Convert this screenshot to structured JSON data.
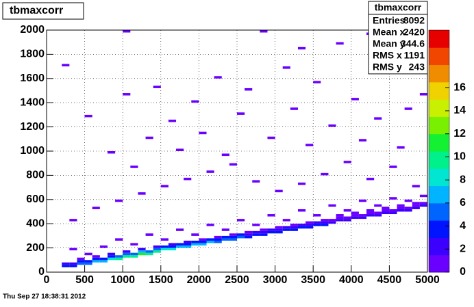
{
  "chart_data": {
    "type": "hist2d",
    "title": "tbmaxcorr",
    "timestamp": "Thu Sep 27 18:38:31 2012",
    "stats_title": "tbmaxcorr",
    "stats": [
      {
        "label": "Entries",
        "value": 8092
      },
      {
        "label": "Mean x",
        "value": 2420
      },
      {
        "label": "Mean y",
        "value": 344.6
      },
      {
        "label": "RMS x",
        "value": 1191
      },
      {
        "label": "RMS y",
        "value": 243
      }
    ],
    "xlim": [
      0,
      5000
    ],
    "ylim": [
      0,
      2000
    ],
    "zlim": [
      0,
      21
    ],
    "xticks": [
      0,
      500,
      1000,
      1500,
      2000,
      2500,
      3000,
      3500,
      4000,
      4500,
      5000
    ],
    "yticks": [
      0,
      200,
      400,
      600,
      800,
      1000,
      1200,
      1400,
      1600,
      1800,
      2000
    ],
    "zticks": [
      0,
      2,
      4,
      6,
      8,
      10,
      12,
      14,
      16
    ],
    "grid": true,
    "bin_size": [
      100,
      20
    ],
    "palette": [
      "#6a00ff",
      "#3c00ff",
      "#0014ff",
      "#0064ff",
      "#00b4ff",
      "#00e6d2",
      "#00f08c",
      "#14f032",
      "#78f000",
      "#c8f000",
      "#f0d200",
      "#f08c00",
      "#f04600",
      "#e60000"
    ],
    "cells": [
      [
        200,
        40,
        3
      ],
      [
        300,
        40,
        4
      ],
      [
        400,
        60,
        5
      ],
      [
        500,
        60,
        5
      ],
      [
        600,
        80,
        6
      ],
      [
        700,
        80,
        7
      ],
      [
        800,
        100,
        8
      ],
      [
        900,
        100,
        9
      ],
      [
        1000,
        120,
        10
      ],
      [
        1100,
        120,
        10
      ],
      [
        1200,
        140,
        11
      ],
      [
        1300,
        140,
        10
      ],
      [
        1400,
        160,
        9
      ],
      [
        1500,
        180,
        8
      ],
      [
        1600,
        180,
        8
      ],
      [
        1700,
        200,
        7
      ],
      [
        1800,
        200,
        7
      ],
      [
        1900,
        220,
        6
      ],
      [
        2000,
        220,
        6
      ],
      [
        2100,
        240,
        6
      ],
      [
        2200,
        240,
        5
      ],
      [
        2300,
        260,
        5
      ],
      [
        2400,
        260,
        5
      ],
      [
        2500,
        280,
        5
      ],
      [
        2600,
        280,
        4
      ],
      [
        2700,
        300,
        4
      ],
      [
        2800,
        300,
        4
      ],
      [
        2900,
        320,
        4
      ],
      [
        3000,
        320,
        3
      ],
      [
        3100,
        340,
        3
      ],
      [
        3200,
        340,
        3
      ],
      [
        3300,
        360,
        3
      ],
      [
        3400,
        360,
        3
      ],
      [
        3500,
        380,
        3
      ],
      [
        3600,
        380,
        3
      ],
      [
        3700,
        400,
        2
      ],
      [
        3800,
        420,
        2
      ],
      [
        3900,
        420,
        2
      ],
      [
        4000,
        440,
        2
      ],
      [
        4100,
        440,
        2
      ],
      [
        4200,
        460,
        2
      ],
      [
        4300,
        460,
        2
      ],
      [
        4400,
        480,
        2
      ],
      [
        4500,
        480,
        2
      ],
      [
        4600,
        500,
        2
      ],
      [
        4700,
        500,
        2
      ],
      [
        4800,
        520,
        2
      ],
      [
        4900,
        540,
        2
      ],
      [
        200,
        60,
        2
      ],
      [
        300,
        60,
        2
      ],
      [
        400,
        80,
        3
      ],
      [
        500,
        80,
        3
      ],
      [
        600,
        100,
        3
      ],
      [
        700,
        100,
        4
      ],
      [
        800,
        120,
        4
      ],
      [
        900,
        120,
        5
      ],
      [
        1000,
        140,
        5
      ],
      [
        1100,
        140,
        5
      ],
      [
        1200,
        160,
        6
      ],
      [
        1300,
        160,
        5
      ],
      [
        1400,
        180,
        5
      ],
      [
        1500,
        200,
        4
      ],
      [
        1600,
        200,
        4
      ],
      [
        1700,
        220,
        4
      ],
      [
        1800,
        220,
        4
      ],
      [
        1900,
        240,
        3
      ],
      [
        2000,
        240,
        3
      ],
      [
        2100,
        260,
        3
      ],
      [
        2200,
        260,
        3
      ],
      [
        2300,
        280,
        3
      ],
      [
        2400,
        280,
        3
      ],
      [
        2500,
        300,
        3
      ],
      [
        2600,
        300,
        2
      ],
      [
        2700,
        320,
        2
      ],
      [
        2800,
        320,
        2
      ],
      [
        2900,
        340,
        2
      ],
      [
        3000,
        340,
        2
      ],
      [
        3100,
        360,
        2
      ],
      [
        3200,
        360,
        2
      ],
      [
        3300,
        380,
        2
      ],
      [
        3400,
        380,
        2
      ],
      [
        3500,
        400,
        2
      ],
      [
        3600,
        400,
        2
      ],
      [
        3700,
        420,
        1
      ],
      [
        3800,
        440,
        1
      ],
      [
        3900,
        440,
        1
      ],
      [
        4000,
        460,
        1
      ],
      [
        4100,
        460,
        1
      ],
      [
        4200,
        480,
        1
      ],
      [
        4300,
        480,
        1
      ],
      [
        4400,
        500,
        1
      ],
      [
        4500,
        500,
        1
      ],
      [
        4600,
        520,
        1
      ],
      [
        4700,
        520,
        1
      ],
      [
        4800,
        540,
        1
      ],
      [
        4900,
        560,
        1
      ],
      [
        400,
        100,
        1
      ],
      [
        600,
        120,
        1
      ],
      [
        800,
        140,
        2
      ],
      [
        1000,
        160,
        2
      ],
      [
        1200,
        180,
        2
      ],
      [
        1400,
        200,
        2
      ],
      [
        1600,
        220,
        2
      ],
      [
        1800,
        240,
        2
      ],
      [
        2000,
        260,
        1
      ],
      [
        2200,
        280,
        1
      ],
      [
        2400,
        300,
        1
      ],
      [
        2600,
        320,
        1
      ],
      [
        2800,
        340,
        1
      ],
      [
        3000,
        360,
        1
      ],
      [
        3200,
        380,
        1
      ],
      [
        3400,
        400,
        1
      ],
      [
        3600,
        420,
        1
      ],
      [
        3800,
        460,
        1
      ],
      [
        4000,
        480,
        1
      ],
      [
        4200,
        500,
        1
      ],
      [
        4400,
        520,
        1
      ],
      [
        4600,
        540,
        1
      ],
      [
        4800,
        560,
        1
      ],
      [
        300,
        180,
        1
      ],
      [
        500,
        140,
        1
      ],
      [
        700,
        200,
        1
      ],
      [
        900,
        260,
        1
      ],
      [
        1100,
        220,
        1
      ],
      [
        1300,
        300,
        1
      ],
      [
        1500,
        260,
        1
      ],
      [
        1700,
        340,
        1
      ],
      [
        1900,
        300,
        1
      ],
      [
        2100,
        380,
        1
      ],
      [
        2300,
        340,
        1
      ],
      [
        2500,
        420,
        1
      ],
      [
        2700,
        380,
        1
      ],
      [
        2900,
        460,
        1
      ],
      [
        3100,
        420,
        1
      ],
      [
        3300,
        500,
        1
      ],
      [
        3500,
        460,
        1
      ],
      [
        3700,
        540,
        1
      ],
      [
        3900,
        500,
        1
      ],
      [
        4100,
        580,
        1
      ],
      [
        4300,
        540,
        1
      ],
      [
        4500,
        600,
        1
      ],
      [
        4700,
        580,
        1
      ],
      [
        4900,
        620,
        1
      ],
      [
        300,
        420,
        1
      ],
      [
        600,
        520,
        1
      ],
      [
        900,
        580,
        1
      ],
      [
        1200,
        640,
        1
      ],
      [
        1500,
        700,
        1
      ],
      [
        1800,
        760,
        1
      ],
      [
        2100,
        820,
        1
      ],
      [
        2400,
        880,
        1
      ],
      [
        2700,
        740,
        1
      ],
      [
        3000,
        660,
        1
      ],
      [
        3300,
        720,
        1
      ],
      [
        3600,
        800,
        1
      ],
      [
        3900,
        900,
        1
      ],
      [
        4200,
        760,
        1
      ],
      [
        4500,
        860,
        1
      ],
      [
        4800,
        700,
        1
      ],
      [
        200,
        1700,
        1
      ],
      [
        500,
        1280,
        1
      ],
      [
        800,
        980,
        1
      ],
      [
        1000,
        1460,
        1
      ],
      [
        1100,
        860,
        1
      ],
      [
        1300,
        1100,
        1
      ],
      [
        1400,
        1520,
        1
      ],
      [
        1600,
        1240,
        1
      ],
      [
        1700,
        1000,
        1
      ],
      [
        1900,
        1400,
        1
      ],
      [
        2000,
        1140,
        1
      ],
      [
        2200,
        1600,
        1
      ],
      [
        2300,
        960,
        1
      ],
      [
        2500,
        1300,
        1
      ],
      [
        2600,
        1500,
        1
      ],
      [
        2800,
        1980,
        1
      ],
      [
        2900,
        1100,
        1
      ],
      [
        3100,
        1680,
        1
      ],
      [
        3200,
        1340,
        1
      ],
      [
        3400,
        1040,
        1
      ],
      [
        3500,
        1560,
        1
      ],
      [
        3700,
        1200,
        1
      ],
      [
        3800,
        1880,
        1
      ],
      [
        4000,
        1420,
        1
      ],
      [
        4100,
        1080,
        1
      ],
      [
        4300,
        1260,
        1
      ],
      [
        4400,
        1660,
        1
      ],
      [
        4600,
        1020,
        1
      ],
      [
        4700,
        1340,
        1
      ],
      [
        4900,
        1460,
        1
      ],
      [
        1000,
        1980,
        1
      ],
      [
        4200,
        1960,
        1
      ],
      [
        3300,
        1840,
        1
      ]
    ]
  }
}
